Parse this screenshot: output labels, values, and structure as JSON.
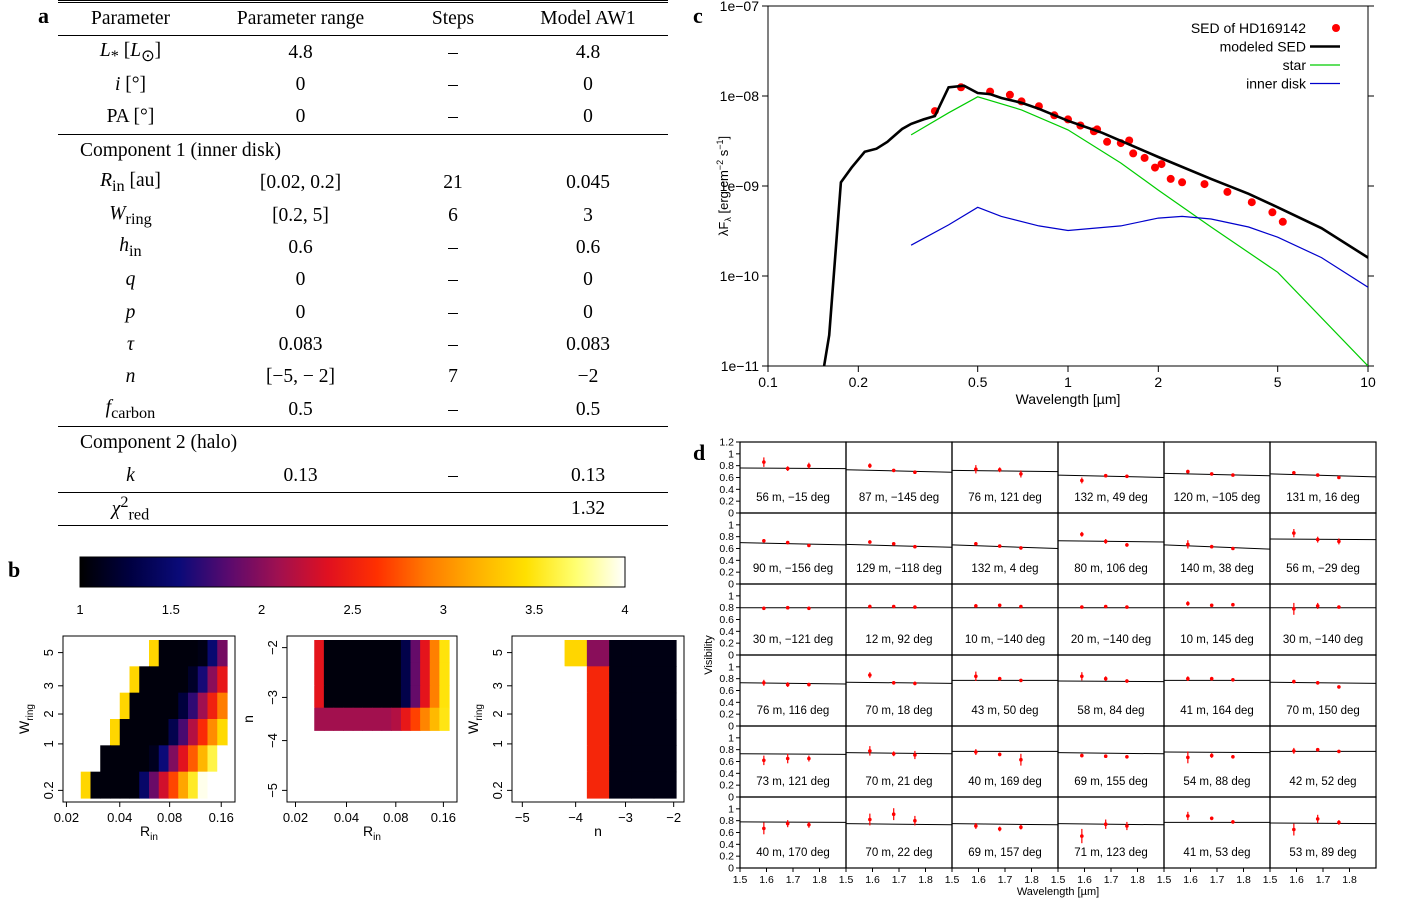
{
  "panel_labels": {
    "a": "a",
    "b": "b",
    "c": "c",
    "d": "d"
  },
  "table": {
    "headers": [
      "Parameter",
      "Parameter range",
      "Steps",
      "Model AW1"
    ],
    "rows_general": [
      {
        "param_html": "<i>L</i><sub>*</sub> [<i>L</i><sub>⊙</sub>]",
        "range": "4.8",
        "steps": "–",
        "model": "4.8"
      },
      {
        "param_html": "<i>i</i> [°]",
        "range": "0",
        "steps": "–",
        "model": "0"
      },
      {
        "param_html": "PA [°]",
        "range": "0",
        "steps": "–",
        "model": "0"
      }
    ],
    "section1": "Component 1 (inner disk)",
    "rows_comp1": [
      {
        "param_html": "<i>R</i><sub>in</sub> [au]",
        "range": "[0.02,  0.2]",
        "steps": "21",
        "model": "0.045"
      },
      {
        "param_html": "<i>W</i><sub>ring</sub>",
        "range": "[0.2,  5]",
        "steps": "6",
        "model": "3"
      },
      {
        "param_html": "<i>h</i><sub>in</sub>",
        "range": "0.6",
        "steps": "–",
        "model": "0.6"
      },
      {
        "param_html": "<i>q</i>",
        "range": "0",
        "steps": "–",
        "model": "0"
      },
      {
        "param_html": "<i>p</i>",
        "range": "0",
        "steps": "–",
        "model": "0"
      },
      {
        "param_html": "<i>τ</i>",
        "range": "0.083",
        "steps": "–",
        "model": "0.083"
      },
      {
        "param_html": "<i>n</i>",
        "range": "[−5,  − 2]",
        "steps": "7",
        "model": "−2"
      },
      {
        "param_html": "<i>f</i><sub>carbon</sub>",
        "range": "0.5",
        "steps": "–",
        "model": "0.5"
      }
    ],
    "section2": "Component 2 (halo)",
    "rows_comp2": [
      {
        "param_html": "<i>k</i>",
        "range": "0.13",
        "steps": "–",
        "model": "0.13"
      }
    ],
    "chi_row": {
      "param_html": "<i>χ</i><sup>2</sup><sub>red</sub>",
      "range": "",
      "steps": "",
      "model": "1.32"
    }
  },
  "colorbar": {
    "ticks": [
      1,
      1.5,
      2,
      2.5,
      3,
      3.5,
      4
    ],
    "range": [
      1,
      4
    ],
    "stops": [
      "#000000",
      "#000040",
      "#0a0a78",
      "#5a0a6e",
      "#a01050",
      "#e01020",
      "#ff3000",
      "#ff7a00",
      "#ffb000",
      "#ffe000",
      "#ffff70",
      "#ffffff"
    ]
  },
  "heatmaps": [
    {
      "xlabel": "R",
      "xlabel_sub": "in",
      "ylabel": "W",
      "ylabel_sub": "ring",
      "x_ticks": [
        "0.02",
        "0.04",
        "0.08",
        "0.16"
      ],
      "y_ticks": [
        "0.2",
        "1",
        "2",
        "3",
        "5"
      ]
    },
    {
      "xlabel": "R",
      "xlabel_sub": "in",
      "ylabel": "n",
      "ylabel_sub": "",
      "x_ticks": [
        "0.02",
        "0.04",
        "0.08",
        "0.16"
      ],
      "y_ticks": [
        "−2",
        "−3",
        "−4",
        "−5"
      ]
    },
    {
      "xlabel": "n",
      "xlabel_sub": "",
      "ylabel": "W",
      "ylabel_sub": "ring",
      "x_ticks": [
        "−5",
        "−4",
        "−3",
        "−2"
      ],
      "y_ticks": [
        "0.2",
        "1",
        "2",
        "3",
        "5"
      ]
    }
  ],
  "chart_data": [
    {
      "type": "line",
      "xlabel": "Wavelength [µm]",
      "ylabel": "λF_λ [erg cm^-2 s^-1]",
      "x_scale": "log",
      "y_scale": "log",
      "xlim": [
        0.1,
        10
      ],
      "ylim": [
        1e-11,
        1e-07
      ],
      "x_ticks": [
        "0.1",
        "0.2",
        "0.5",
        "1",
        "2",
        "5",
        "10"
      ],
      "y_ticks": [
        "1e−07",
        "1e−08",
        "1e−09",
        "1e−10",
        "1e−11"
      ],
      "legend_position": "top-right",
      "series": [
        {
          "name": "SED of HD169142",
          "kind": "points",
          "color": "#ff0000",
          "x": [
            0.36,
            0.44,
            0.55,
            0.64,
            0.7,
            0.8,
            0.9,
            1.0,
            1.1,
            1.22,
            1.25,
            1.35,
            1.5,
            1.6,
            1.65,
            1.8,
            1.95,
            2.05,
            2.2,
            2.4,
            2.85,
            3.4,
            4.1,
            4.8,
            5.2
          ],
          "y": [
            6.8e-09,
            1.25e-08,
            1.12e-08,
            1.03e-08,
            8.7e-09,
            7.7e-09,
            6.1e-09,
            5.5e-09,
            4.7e-09,
            4.05e-09,
            4.25e-09,
            3.1e-09,
            3e-09,
            3.2e-09,
            2.3e-09,
            2.05e-09,
            1.6e-09,
            1.75e-09,
            1.2e-09,
            1.1e-09,
            1.05e-09,
            8.6e-10,
            6.6e-10,
            5.1e-10,
            4e-10
          ]
        },
        {
          "name": "modeled SED",
          "kind": "line",
          "color": "#000000",
          "x": [
            0.15,
            0.16,
            0.175,
            0.19,
            0.21,
            0.23,
            0.25,
            0.28,
            0.3,
            0.33,
            0.36,
            0.4,
            0.45,
            0.5,
            0.55,
            0.6,
            0.7,
            0.8,
            1.0,
            1.3,
            1.6,
            2.0,
            3.0,
            4.0,
            5.0,
            7.0,
            10.0
          ],
          "y": [
            6e-12,
            2.2e-11,
            1.1e-09,
            1.6e-09,
            2.4e-09,
            2.6e-09,
            3.1e-09,
            4.3e-09,
            4.9e-09,
            5.5e-09,
            6e-09,
            1.25e-08,
            1.3e-08,
            1.08e-08,
            1.05e-08,
            9.5e-09,
            8.4e-09,
            7.2e-09,
            5.3e-09,
            3.9e-09,
            2.9e-09,
            2.1e-09,
            1.2e-09,
            8.2e-10,
            5.8e-10,
            3.4e-10,
            1.6e-10
          ]
        },
        {
          "name": "star",
          "kind": "line",
          "color": "#00cc00",
          "x": [
            0.3,
            0.4,
            0.5,
            0.7,
            1.0,
            1.5,
            2.0,
            3.0,
            5.0,
            10.0
          ],
          "y": [
            3.7e-09,
            6.5e-09,
            9.8e-09,
            7e-09,
            4.2e-09,
            1.8e-09,
            9e-10,
            3.5e-10,
            1.1e-10,
            1e-11
          ]
        },
        {
          "name": "inner disk",
          "kind": "line",
          "color": "#0000cc",
          "x": [
            0.3,
            0.4,
            0.5,
            0.6,
            0.8,
            1.0,
            1.5,
            2.0,
            2.4,
            3.0,
            4.0,
            5.0,
            7.0,
            10.0
          ],
          "y": [
            2.2e-10,
            3.7e-10,
            5.8e-10,
            4.6e-10,
            3.6e-10,
            3.2e-10,
            3.6e-10,
            4.4e-10,
            4.6e-10,
            4.3e-10,
            3.5e-10,
            2.7e-10,
            1.6e-10,
            7.5e-11
          ]
        }
      ]
    },
    {
      "type": "scatter",
      "ylabel": "Visibility",
      "xlabel": "Wavelength [µm]",
      "xlim": [
        1.5,
        1.9
      ],
      "ylim": [
        0,
        1.2
      ],
      "x_ticks": [
        "1.5",
        "1.6",
        "1.7",
        "1.8"
      ],
      "y_ticks": [
        "0",
        "0.2",
        "0.4",
        "0.6",
        "0.8",
        "1",
        "1.2"
      ],
      "wavelengths": [
        1.59,
        1.68,
        1.76
      ],
      "panels": [
        {
          "label": "56 m, −15 deg",
          "v": [
            0.86,
            0.75,
            0.8
          ],
          "e": [
            0.08,
            0.04,
            0.05
          ],
          "model": [
            0.76,
            0.75
          ]
        },
        {
          "label": "87 m, −145 deg",
          "v": [
            0.8,
            0.72,
            0.69
          ],
          "e": [
            0.04,
            0.02,
            0.02
          ],
          "model": [
            0.73,
            0.69
          ]
        },
        {
          "label": "76 m, 121 deg",
          "v": [
            0.74,
            0.73,
            0.66
          ],
          "e": [
            0.07,
            0.04,
            0.06
          ],
          "model": [
            0.72,
            0.7
          ]
        },
        {
          "label": "132 m, 49 deg",
          "v": [
            0.55,
            0.63,
            0.62
          ],
          "e": [
            0.05,
            0.02,
            0.02
          ],
          "model": [
            0.64,
            0.6
          ]
        },
        {
          "label": "120 m, −105 deg",
          "v": [
            0.7,
            0.66,
            0.64
          ],
          "e": [
            0.03,
            0.02,
            0.02
          ],
          "model": [
            0.67,
            0.63
          ]
        },
        {
          "label": "131 m, 16 deg",
          "v": [
            0.68,
            0.64,
            0.6
          ],
          "e": [
            0.03,
            0.02,
            0.02
          ],
          "model": [
            0.66,
            0.61
          ]
        },
        {
          "label": "90 m, −156 deg",
          "v": [
            0.73,
            0.7,
            0.65
          ],
          "e": [
            0.03,
            0.02,
            0.02
          ],
          "model": [
            0.7,
            0.66
          ]
        },
        {
          "label": "129 m, −118 deg",
          "v": [
            0.71,
            0.68,
            0.63
          ],
          "e": [
            0.03,
            0.02,
            0.02
          ],
          "model": [
            0.67,
            0.62
          ]
        },
        {
          "label": "132 m, 4 deg",
          "v": [
            0.68,
            0.64,
            0.61
          ],
          "e": [
            0.03,
            0.02,
            0.02
          ],
          "model": [
            0.66,
            0.6
          ]
        },
        {
          "label": "80 m, 106 deg",
          "v": [
            0.84,
            0.72,
            0.66
          ],
          "e": [
            0.04,
            0.04,
            0.03
          ],
          "model": [
            0.73,
            0.71
          ]
        },
        {
          "label": "140 m, 38 deg",
          "v": [
            0.67,
            0.63,
            0.6
          ],
          "e": [
            0.07,
            0.03,
            0.02
          ],
          "model": [
            0.66,
            0.59
          ]
        },
        {
          "label": "56 m, −29 deg",
          "v": [
            0.86,
            0.75,
            0.72
          ],
          "e": [
            0.07,
            0.05,
            0.05
          ],
          "model": [
            0.76,
            0.75
          ]
        },
        {
          "label": "30 m, −121 deg",
          "v": [
            0.79,
            0.8,
            0.79
          ],
          "e": [
            0.02,
            0.02,
            0.02
          ],
          "model": [
            0.8,
            0.8
          ]
        },
        {
          "label": "12 m, 92 deg",
          "v": [
            0.82,
            0.82,
            0.81
          ],
          "e": [
            0.03,
            0.02,
            0.02
          ],
          "model": [
            0.8,
            0.8
          ]
        },
        {
          "label": "10 m, −140 deg",
          "v": [
            0.83,
            0.84,
            0.82
          ],
          "e": [
            0.03,
            0.02,
            0.02
          ],
          "model": [
            0.8,
            0.8
          ]
        },
        {
          "label": "20 m, −140 deg",
          "v": [
            0.81,
            0.82,
            0.81
          ],
          "e": [
            0.02,
            0.02,
            0.02
          ],
          "model": [
            0.8,
            0.8
          ]
        },
        {
          "label": "10 m, 145 deg",
          "v": [
            0.87,
            0.84,
            0.85
          ],
          "e": [
            0.04,
            0.02,
            0.02
          ],
          "model": [
            0.8,
            0.8
          ]
        },
        {
          "label": "30 m, −140 deg",
          "v": [
            0.78,
            0.83,
            0.81
          ],
          "e": [
            0.1,
            0.05,
            0.02
          ],
          "model": [
            0.8,
            0.8
          ]
        },
        {
          "label": "76 m, 116 deg",
          "v": [
            0.73,
            0.7,
            0.7
          ],
          "e": [
            0.05,
            0.04,
            0.03
          ],
          "model": [
            0.73,
            0.71
          ]
        },
        {
          "label": "70 m, 18 deg",
          "v": [
            0.86,
            0.73,
            0.72
          ],
          "e": [
            0.05,
            0.03,
            0.03
          ],
          "model": [
            0.74,
            0.72
          ]
        },
        {
          "label": "43 m, 50 deg",
          "v": [
            0.84,
            0.8,
            0.77
          ],
          "e": [
            0.08,
            0.03,
            0.02
          ],
          "model": [
            0.77,
            0.77
          ]
        },
        {
          "label": "58 m, 84 deg",
          "v": [
            0.84,
            0.8,
            0.76
          ],
          "e": [
            0.07,
            0.04,
            0.03
          ],
          "model": [
            0.76,
            0.75
          ]
        },
        {
          "label": "41 m, 164 deg",
          "v": [
            0.8,
            0.8,
            0.78
          ],
          "e": [
            0.04,
            0.03,
            0.02
          ],
          "model": [
            0.77,
            0.77
          ]
        },
        {
          "label": "70 m, 150 deg",
          "v": [
            0.75,
            0.73,
            0.66
          ],
          "e": [
            0.03,
            0.03,
            0.02
          ],
          "model": [
            0.74,
            0.72
          ]
        },
        {
          "label": "73 m, 121 deg",
          "v": [
            0.62,
            0.65,
            0.65
          ],
          "e": [
            0.08,
            0.08,
            0.05
          ],
          "model": [
            0.73,
            0.72
          ]
        },
        {
          "label": "70 m, 21 deg",
          "v": [
            0.78,
            0.73,
            0.71
          ],
          "e": [
            0.08,
            0.04,
            0.07
          ],
          "model": [
            0.75,
            0.73
          ]
        },
        {
          "label": "40 m, 169 deg",
          "v": [
            0.76,
            0.72,
            0.63
          ],
          "e": [
            0.05,
            0.03,
            0.1
          ],
          "model": [
            0.77,
            0.77
          ]
        },
        {
          "label": "69 m, 155 deg",
          "v": [
            0.7,
            0.69,
            0.68
          ],
          "e": [
            0.03,
            0.02,
            0.02
          ],
          "model": [
            0.75,
            0.73
          ]
        },
        {
          "label": "54 m, 88 deg",
          "v": [
            0.67,
            0.7,
            0.68
          ],
          "e": [
            0.1,
            0.04,
            0.03
          ],
          "model": [
            0.76,
            0.75
          ]
        },
        {
          "label": "42 m, 52 deg",
          "v": [
            0.78,
            0.8,
            0.77
          ],
          "e": [
            0.05,
            0.02,
            0.02
          ],
          "model": [
            0.77,
            0.77
          ]
        },
        {
          "label": "40 m, 170 deg",
          "v": [
            0.67,
            0.75,
            0.73
          ],
          "e": [
            0.1,
            0.06,
            0.05
          ],
          "model": [
            0.78,
            0.77
          ]
        },
        {
          "label": "70 m, 22 deg",
          "v": [
            0.82,
            0.91,
            0.8
          ],
          "e": [
            0.1,
            0.1,
            0.08
          ],
          "model": [
            0.75,
            0.73
          ]
        },
        {
          "label": "69 m, 157 deg",
          "v": [
            0.71,
            0.66,
            0.69
          ],
          "e": [
            0.05,
            0.04,
            0.04
          ],
          "model": [
            0.75,
            0.73
          ]
        },
        {
          "label": "71 m, 123 deg",
          "v": [
            0.54,
            0.74,
            0.71
          ],
          "e": [
            0.12,
            0.08,
            0.07
          ],
          "model": [
            0.75,
            0.73
          ]
        },
        {
          "label": "41 m, 53 deg",
          "v": [
            0.88,
            0.84,
            0.78
          ],
          "e": [
            0.07,
            0.03,
            0.03
          ],
          "model": [
            0.77,
            0.77
          ]
        },
        {
          "label": "53 m, 89 deg",
          "v": [
            0.65,
            0.83,
            0.77
          ],
          "e": [
            0.1,
            0.07,
            0.04
          ],
          "model": [
            0.76,
            0.75
          ]
        }
      ]
    }
  ]
}
